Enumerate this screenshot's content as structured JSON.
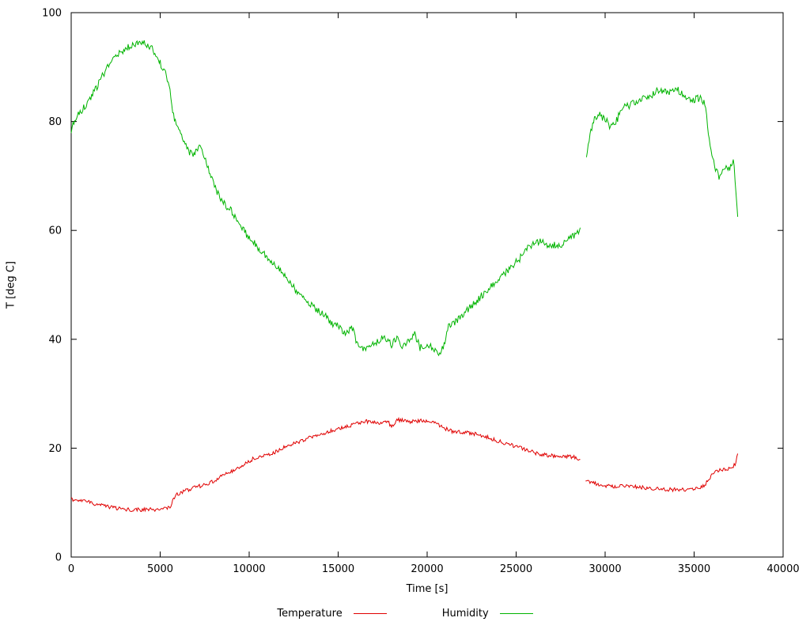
{
  "figure": {
    "background": "#ffffff",
    "plot_border_color": "#000000",
    "text_color": "#000000"
  },
  "chart_data": {
    "type": "line",
    "title": "",
    "xlabel": "Time [s]",
    "ylabel": "T [deg C]",
    "xlim": [
      0,
      40000
    ],
    "ylim": [
      0,
      100
    ],
    "xticks": [
      0,
      5000,
      10000,
      15000,
      20000,
      25000,
      30000,
      35000,
      40000
    ],
    "yticks": [
      0,
      20,
      40,
      60,
      80,
      100
    ],
    "grid": false,
    "legend_position": "below-center",
    "series": [
      {
        "name": "Temperature",
        "color": "#e00000",
        "noise": 0.35,
        "segments": [
          {
            "x": [
              0,
              400,
              800,
              1200,
              1600,
              2000,
              2400,
              2800,
              3400,
              4000,
              4600,
              5200,
              5600,
              5750,
              6000,
              6400,
              6800,
              7200,
              7400,
              7800,
              8200,
              8600,
              9000,
              9400,
              9800,
              10200,
              10600,
              11000,
              11400,
              11800,
              12200,
              12600,
              13000,
              13400,
              13800,
              14200,
              14600,
              15000,
              15400,
              15800,
              16200,
              16600,
              17000,
              17400,
              17800,
              18000,
              18300,
              18600,
              19000,
              19400,
              19800,
              20200,
              20600,
              21000,
              21400,
              21800,
              22200,
              22600,
              23000,
              23400,
              23800,
              24200,
              24600,
              25000,
              25400,
              25800,
              26200,
              26600,
              27000,
              27400,
              27800,
              28200,
              28600
            ],
            "y": [
              10.6,
              10.4,
              10.2,
              9.9,
              9.6,
              9.3,
              9.0,
              8.8,
              8.7,
              8.7,
              8.7,
              8.8,
              9.2,
              10.8,
              11.6,
              12.2,
              12.6,
              13.0,
              13.2,
              13.6,
              14.2,
              15.2,
              15.8,
              16.4,
              17.2,
              18.0,
              18.4,
              18.8,
              19.2,
              19.8,
              20.6,
              21.0,
              21.4,
              21.9,
              22.3,
              22.7,
              23.2,
              23.5,
              23.9,
              24.3,
              24.6,
              24.9,
              24.8,
              24.5,
              25.0,
              23.8,
              25.2,
              25.1,
              24.9,
              25.0,
              25.1,
              24.8,
              24.4,
              23.6,
              23.1,
              23.0,
              22.9,
              22.7,
              22.4,
              22.0,
              21.5,
              21.1,
              20.7,
              20.3,
              19.9,
              19.4,
              19.0,
              18.8,
              18.6,
              18.5,
              18.5,
              18.4,
              17.9
            ]
          },
          {
            "x": [
              28900,
              29200,
              29600,
              30000,
              30400,
              30800,
              31200,
              31600,
              32000,
              32400,
              32800,
              33200,
              33600,
              34000,
              34400,
              34800,
              35200,
              35500,
              35800,
              36000,
              36200,
              36500,
              36800,
              37100,
              37300,
              37450
            ],
            "y": [
              14.2,
              13.8,
              13.4,
              13.1,
              13.0,
              13.0,
              13.0,
              12.9,
              12.8,
              12.6,
              12.5,
              12.5,
              12.4,
              12.4,
              12.4,
              12.5,
              12.7,
              13.0,
              14.0,
              15.2,
              15.6,
              16.0,
              16.2,
              16.4,
              17.0,
              19.0
            ]
          }
        ]
      },
      {
        "name": "Humidity",
        "color": "#00b400",
        "noise": 0.65,
        "segments": [
          {
            "x": [
              0,
              200,
              500,
              900,
              1300,
              1700,
              2100,
              2500,
              2900,
              3300,
              3700,
              4100,
              4500,
              4900,
              5200,
              5500,
              5750,
              6000,
              6300,
              6600,
              6900,
              7200,
              7400,
              7600,
              7900,
              8200,
              8600,
              9000,
              9400,
              9800,
              10200,
              10600,
              11000,
              11400,
              11800,
              12200,
              12600,
              13000,
              13400,
              13800,
              14200,
              14600,
              15000,
              15400,
              15800,
              16100,
              16400,
              16800,
              17200,
              17600,
              18000,
              18300,
              18600,
              19000,
              19300,
              19600,
              20000,
              20300,
              20600,
              20900,
              21200,
              21600,
              22000,
              22400,
              22800,
              23200,
              23600,
              24000,
              24400,
              24800,
              25200,
              25600,
              26000,
              26300,
              26600,
              26900,
              27200,
              27500,
              27800,
              28100,
              28400,
              28600
            ],
            "y": [
              78.5,
              80.5,
              81.5,
              83.5,
              85.5,
              88.0,
              90.5,
              92.0,
              93.0,
              94.0,
              94.5,
              94.3,
              93.5,
              91.5,
              89.5,
              87.0,
              81.0,
              78.5,
              76.5,
              74.5,
              73.8,
              75.5,
              74.5,
              72.0,
              69.5,
              67.0,
              65.0,
              63.5,
              61.5,
              59.5,
              58.0,
              56.5,
              55.0,
              54.0,
              52.5,
              51.0,
              49.0,
              48.0,
              46.5,
              45.5,
              44.5,
              43.0,
              42.5,
              41.0,
              42.0,
              38.8,
              38.3,
              38.5,
              39.5,
              40.5,
              39.0,
              40.5,
              38.8,
              39.8,
              41.0,
              38.5,
              39.2,
              38.6,
              37.0,
              38.5,
              42.5,
              43.2,
              44.5,
              45.8,
              47.0,
              48.5,
              49.8,
              51.0,
              52.3,
              53.5,
              54.8,
              56.5,
              57.8,
              58.0,
              57.5,
              57.0,
              57.3,
              57.2,
              58.0,
              58.8,
              59.5,
              60.5
            ]
          },
          {
            "x": [
              28950,
              29100,
              29300,
              29500,
              29700,
              29900,
              30100,
              30300,
              30500,
              30700,
              30900,
              31100,
              31400,
              31700,
              32000,
              32300,
              32600,
              32900,
              33200,
              33500,
              33800,
              34100,
              34400,
              34700,
              35000,
              35300,
              35600,
              35800,
              36000,
              36200,
              36400,
              36600,
              36800,
              37000,
              37200,
              37350,
              37450
            ],
            "y": [
              73.5,
              76.5,
              79.5,
              81.0,
              81.3,
              80.5,
              80.0,
              79.0,
              79.5,
              80.5,
              82.5,
              82.8,
              83.0,
              83.5,
              84.3,
              84.0,
              84.8,
              85.8,
              85.5,
              85.3,
              86.0,
              85.8,
              85.0,
              84.3,
              84.0,
              84.3,
              83.5,
              78.0,
              74.0,
              71.5,
              70.0,
              71.0,
              72.0,
              71.0,
              73.5,
              67.0,
              62.5
            ]
          }
        ]
      }
    ]
  }
}
